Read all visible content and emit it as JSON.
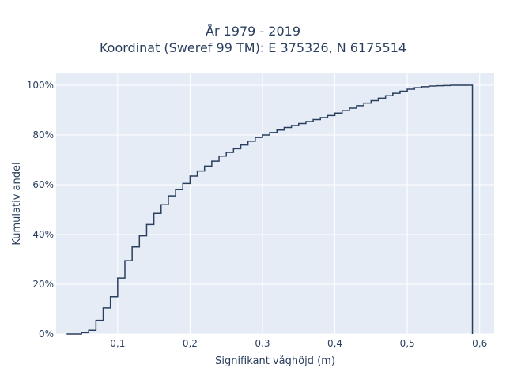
{
  "chart_data": {
    "type": "line",
    "subtype": "empirical-cdf-step",
    "title_line1": "År 1979 - 2019",
    "title_line2": "Koordinat (Sweref 99 TM): E 375326, N 6175514",
    "xlabel": "Signifikant våghöjd (m)",
    "ylabel": "Kumulativ andel",
    "xlim": [
      0.015,
      0.62
    ],
    "ylim": [
      0,
      1
    ],
    "x_ticks": [
      0.1,
      0.2,
      0.3,
      0.4,
      0.5,
      0.6
    ],
    "x_tick_labels": [
      "0,1",
      "0,2",
      "0,3",
      "0,4",
      "0,5",
      "0,6"
    ],
    "y_ticks": [
      0,
      0.2,
      0.4,
      0.6,
      0.8,
      1.0
    ],
    "y_tick_labels": [
      "0%",
      "20%",
      "40%",
      "60%",
      "80%",
      "100%"
    ],
    "grid": true,
    "colors": {
      "plot_bg": "#e5ecf6",
      "grid": "#ffffff",
      "line": "#2a3f5f"
    },
    "series": [
      {
        "x": [
          0.03,
          0.05,
          0.06,
          0.07,
          0.08,
          0.09,
          0.1,
          0.11,
          0.12,
          0.13,
          0.14,
          0.15,
          0.16,
          0.17,
          0.18,
          0.19,
          0.2,
          0.21,
          0.22,
          0.23,
          0.24,
          0.25,
          0.26,
          0.27,
          0.28,
          0.29,
          0.3,
          0.31,
          0.32,
          0.33,
          0.34,
          0.35,
          0.36,
          0.37,
          0.38,
          0.39,
          0.4,
          0.41,
          0.42,
          0.43,
          0.44,
          0.45,
          0.46,
          0.47,
          0.48,
          0.49,
          0.5,
          0.51,
          0.52,
          0.53,
          0.54,
          0.55,
          0.56,
          0.57,
          0.58,
          0.59
        ],
        "y": [
          0.0,
          0.005,
          0.015,
          0.055,
          0.105,
          0.15,
          0.225,
          0.295,
          0.35,
          0.395,
          0.44,
          0.485,
          0.52,
          0.555,
          0.58,
          0.605,
          0.635,
          0.655,
          0.675,
          0.695,
          0.715,
          0.73,
          0.745,
          0.76,
          0.775,
          0.79,
          0.8,
          0.81,
          0.82,
          0.83,
          0.838,
          0.846,
          0.854,
          0.862,
          0.87,
          0.878,
          0.888,
          0.898,
          0.908,
          0.918,
          0.928,
          0.938,
          0.948,
          0.958,
          0.968,
          0.976,
          0.984,
          0.99,
          0.994,
          0.997,
          0.998,
          0.999,
          1.0,
          1.0,
          1.0,
          1.0
        ]
      }
    ]
  }
}
